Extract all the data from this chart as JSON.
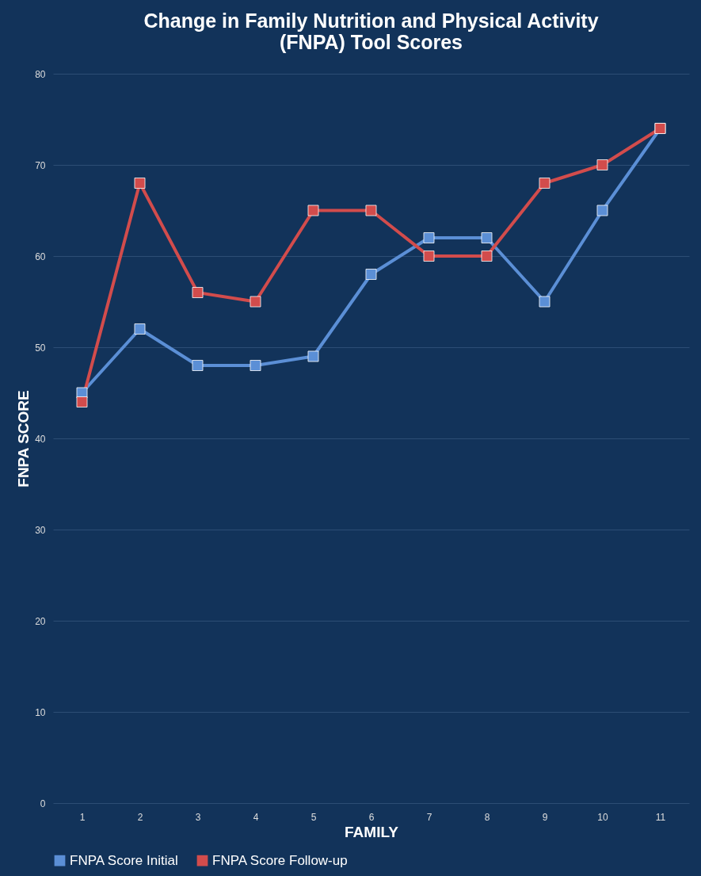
{
  "chart_data": {
    "type": "line",
    "title": "Change in Family Nutrition and Physical Activity\n(FNPA) Tool Scores",
    "xlabel": "FAMILY",
    "ylabel": "FNPA SCORE",
    "categories": [
      "1",
      "2",
      "3",
      "4",
      "5",
      "6",
      "7",
      "8",
      "9",
      "10",
      "11"
    ],
    "series": [
      {
        "name": "FNPA Score Initial",
        "color": "#5b8fd6",
        "values": [
          45,
          52,
          48,
          48,
          49,
          58,
          62,
          62,
          55,
          65,
          74
        ]
      },
      {
        "name": "FNPA Score Follow-up",
        "color": "#d24c4c",
        "values": [
          44,
          68,
          56,
          55,
          65,
          65,
          60,
          60,
          68,
          70,
          74
        ]
      }
    ],
    "ylim": [
      0,
      80
    ],
    "yticks": [
      0,
      10,
      20,
      30,
      40,
      50,
      60,
      70,
      80
    ],
    "grid": "y",
    "legend": "bottom",
    "marker": "square",
    "line_style": "solid"
  }
}
